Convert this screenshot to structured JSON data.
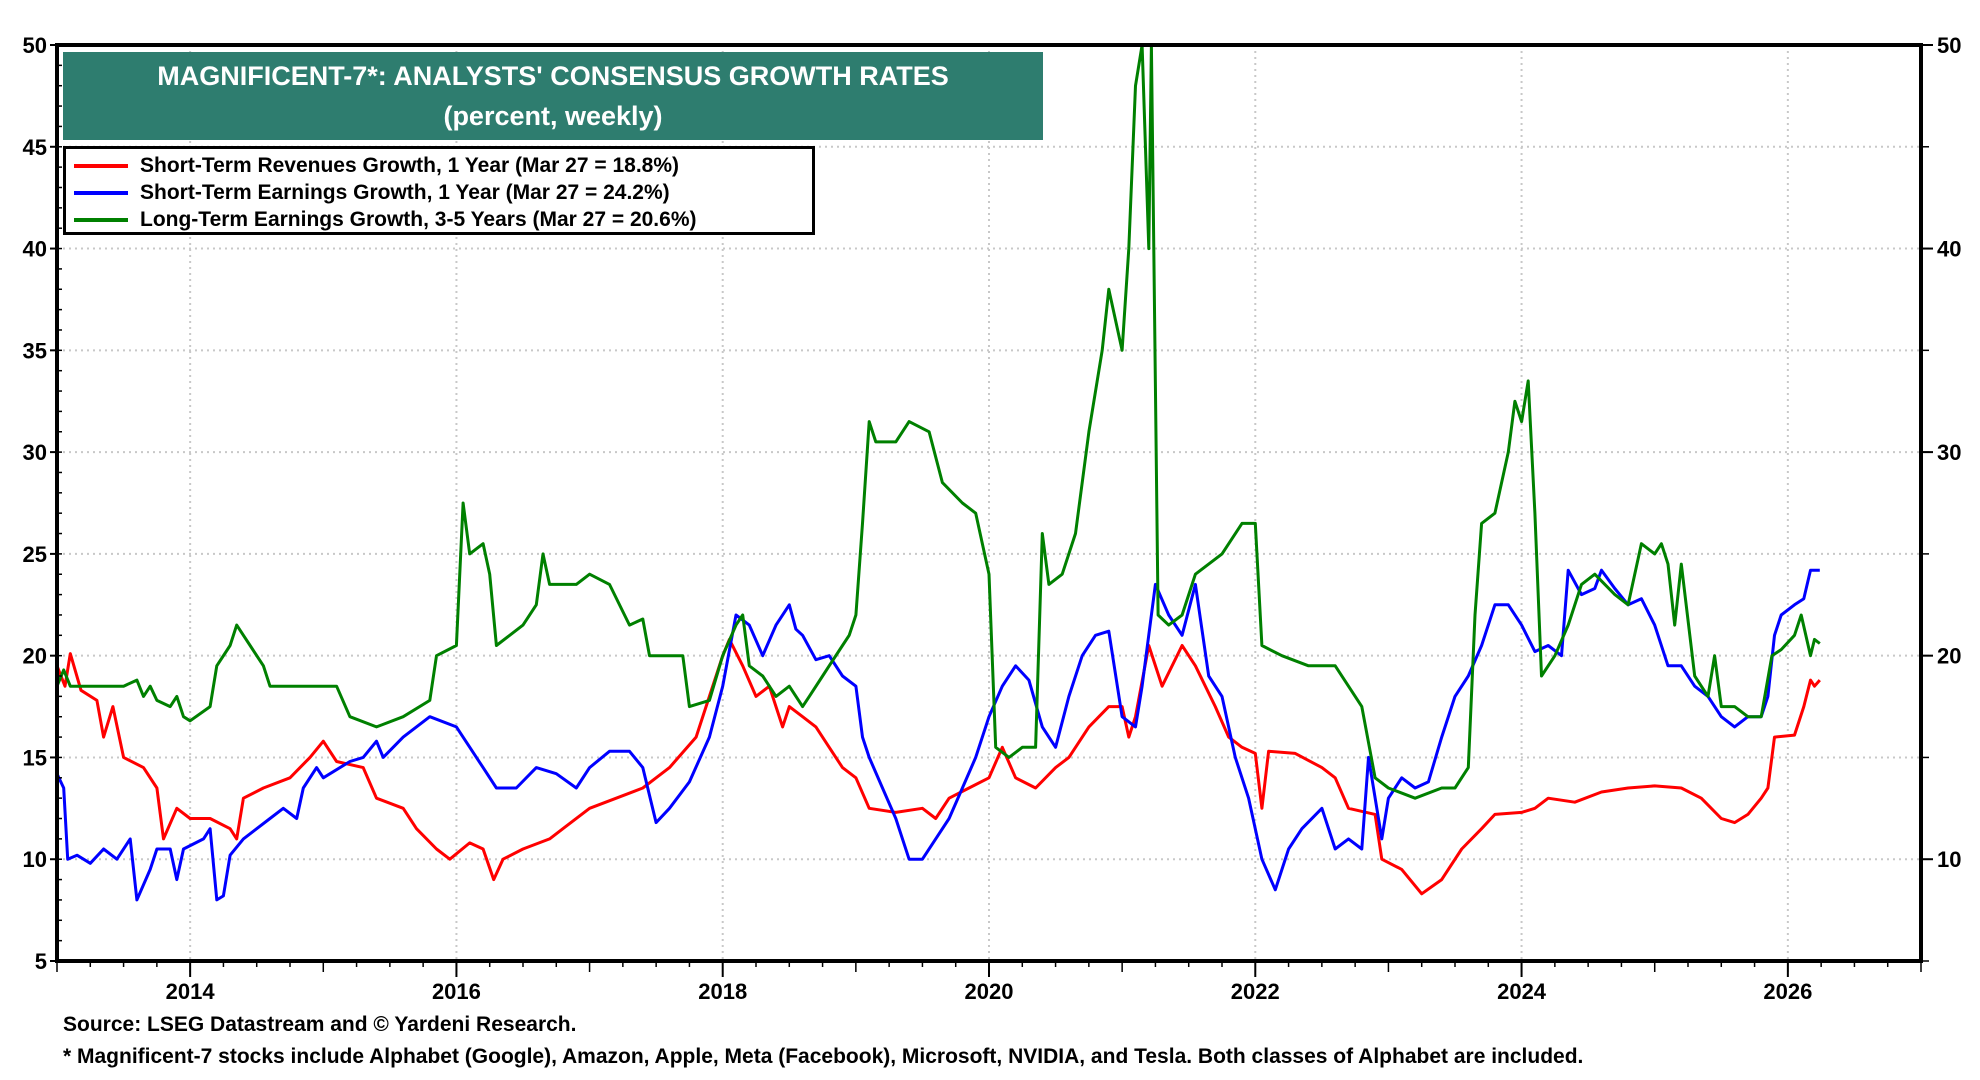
{
  "chart_data": {
    "type": "line",
    "title": "MAGNIFICENT-7*: ANALYSTS' CONSENSUS GROWTH RATES",
    "subtitle": "(percent, weekly)",
    "xlim": [
      2013.0,
      2027.0
    ],
    "ylim": [
      5,
      50
    ],
    "y2lim": [
      5,
      50
    ],
    "x_tick_labels": [
      "2014",
      "2016",
      "2018",
      "2020",
      "2022",
      "2024",
      "2026"
    ],
    "y_tick_labels": [
      "5",
      "10",
      "15",
      "20",
      "25",
      "30",
      "35",
      "40",
      "45",
      "50"
    ],
    "y2_tick_labels": [
      "10",
      "20",
      "30",
      "40",
      "50"
    ],
    "grid": true,
    "legend_position": "top-left",
    "colors": {
      "title_bg": "#2e7d6f",
      "revenues": "#ff0000",
      "earnings_st": "#0000ff",
      "earnings_lt": "#008000"
    },
    "series": [
      {
        "name": "Short-Term Revenues Growth, 1 Year (Mar 27 = 18.8%)",
        "color": "#ff0000",
        "x": [
          2013.0,
          2013.06,
          2013.1,
          2013.18,
          2013.3,
          2013.35,
          2013.42,
          2013.5,
          2013.65,
          2013.75,
          2013.8,
          2013.9,
          2014.0,
          2014.15,
          2014.3,
          2014.35,
          2014.4,
          2014.55,
          2014.75,
          2014.9,
          2015.0,
          2015.1,
          2015.3,
          2015.4,
          2015.6,
          2015.7,
          2015.85,
          2015.95,
          2016.1,
          2016.2,
          2016.28,
          2016.35,
          2016.5,
          2016.7,
          2016.8,
          2017.0,
          2017.2,
          2017.4,
          2017.5,
          2017.6,
          2017.8,
          2017.9,
          2018.0,
          2018.05,
          2018.15,
          2018.25,
          2018.35,
          2018.45,
          2018.5,
          2018.6,
          2018.7,
          2018.8,
          2018.9,
          2019.0,
          2019.1,
          2019.3,
          2019.5,
          2019.6,
          2019.7,
          2019.85,
          2020.0,
          2020.1,
          2020.2,
          2020.35,
          2020.5,
          2020.6,
          2020.75,
          2020.9,
          2021.0,
          2021.05,
          2021.1,
          2021.2,
          2021.3,
          2021.45,
          2021.55,
          2021.7,
          2021.8,
          2021.9,
          2022.0,
          2022.05,
          2022.1,
          2022.3,
          2022.5,
          2022.6,
          2022.7,
          2022.9,
          2022.95,
          2023.1,
          2023.25,
          2023.4,
          2023.55,
          2023.7,
          2023.8,
          2024.0,
          2024.1,
          2024.2,
          2024.4,
          2024.6,
          2024.8,
          2025.0,
          2025.2,
          2025.35,
          2025.5,
          2025.6,
          2025.7,
          2025.8,
          2025.85,
          2025.9,
          2026.05,
          2026.12,
          2026.17,
          2026.2,
          2026.24
        ],
        "y": [
          19.5,
          18.5,
          20.1,
          18.3,
          17.8,
          16,
          17.5,
          15,
          14.5,
          13.5,
          11,
          12.5,
          12,
          12,
          11.5,
          11,
          13,
          13.5,
          14,
          15,
          15.8,
          14.8,
          14.5,
          13,
          12.5,
          11.5,
          10.5,
          10,
          10.8,
          10.5,
          9,
          10,
          10.5,
          11,
          11.5,
          12.5,
          13,
          13.5,
          14,
          14.5,
          16,
          18,
          20,
          20.8,
          19.5,
          18,
          18.5,
          16.5,
          17.5,
          17,
          16.5,
          15.5,
          14.5,
          14,
          12.5,
          12.3,
          12.5,
          12,
          13,
          13.5,
          14,
          15.5,
          14,
          13.5,
          14.5,
          15,
          16.5,
          17.5,
          17.5,
          16,
          17,
          20.5,
          18.5,
          20.5,
          19.5,
          17.5,
          16,
          15.5,
          15.2,
          12.5,
          15.3,
          15.2,
          14.5,
          14,
          12.5,
          12.2,
          10,
          9.5,
          8.3,
          9,
          10.5,
          11.5,
          12.2,
          12.3,
          12.5,
          13,
          12.8,
          13.3,
          13.5,
          13.6,
          13.5,
          13,
          12,
          11.8,
          12.2,
          13,
          13.5,
          16,
          16.1,
          17.5,
          18.8,
          18.5,
          18.8
        ]
      },
      {
        "name": "Short-Term Earnings Growth, 1 Year (Mar 27 = 24.2%)",
        "color": "#0000ff",
        "x": [
          2013.0,
          2013.05,
          2013.08,
          2013.15,
          2013.25,
          2013.35,
          2013.45,
          2013.55,
          2013.6,
          2013.7,
          2013.75,
          2013.85,
          2013.9,
          2013.95,
          2014.1,
          2014.15,
          2014.2,
          2014.25,
          2014.3,
          2014.4,
          2014.5,
          2014.6,
          2014.7,
          2014.8,
          2014.85,
          2014.95,
          2015.0,
          2015.2,
          2015.3,
          2015.4,
          2015.45,
          2015.6,
          2015.8,
          2016.0,
          2016.2,
          2016.3,
          2016.45,
          2016.6,
          2016.75,
          2016.9,
          2017.0,
          2017.15,
          2017.3,
          2017.4,
          2017.5,
          2017.6,
          2017.75,
          2017.9,
          2018.0,
          2018.1,
          2018.2,
          2018.3,
          2018.4,
          2018.5,
          2018.55,
          2018.6,
          2018.7,
          2018.8,
          2018.9,
          2019.0,
          2019.05,
          2019.1,
          2019.2,
          2019.3,
          2019.4,
          2019.5,
          2019.6,
          2019.7,
          2019.8,
          2019.9,
          2020.0,
          2020.1,
          2020.2,
          2020.3,
          2020.4,
          2020.5,
          2020.6,
          2020.7,
          2020.8,
          2020.9,
          2021.0,
          2021.1,
          2021.15,
          2021.25,
          2021.35,
          2021.45,
          2021.55,
          2021.65,
          2021.75,
          2021.85,
          2021.95,
          2022.05,
          2022.15,
          2022.25,
          2022.35,
          2022.5,
          2022.6,
          2022.7,
          2022.8,
          2022.85,
          2022.95,
          2023.0,
          2023.1,
          2023.2,
          2023.3,
          2023.4,
          2023.5,
          2023.6,
          2023.7,
          2023.8,
          2023.9,
          2024.0,
          2024.1,
          2024.2,
          2024.3,
          2024.35,
          2024.45,
          2024.55,
          2024.6,
          2024.7,
          2024.8,
          2024.9,
          2025.0,
          2025.1,
          2025.2,
          2025.3,
          2025.4,
          2025.5,
          2025.6,
          2025.7,
          2025.8,
          2025.85,
          2025.9,
          2025.95,
          2026.05,
          2026.12,
          2026.17,
          2026.24
        ],
        "y": [
          14.2,
          13.5,
          10,
          10.2,
          9.8,
          10.5,
          10,
          11,
          8,
          9.5,
          10.5,
          10.5,
          9,
          10.5,
          11,
          11.5,
          8,
          8.2,
          10.2,
          11,
          11.5,
          12,
          12.5,
          12,
          13.5,
          14.5,
          14,
          14.8,
          15,
          15.8,
          15,
          16,
          17,
          16.5,
          14.5,
          13.5,
          13.5,
          14.5,
          14.2,
          13.5,
          14.5,
          15.3,
          15.3,
          14.5,
          11.8,
          12.5,
          13.8,
          16,
          18.5,
          22,
          21.5,
          20,
          21.5,
          22.5,
          21.3,
          21,
          19.8,
          20,
          19,
          18.5,
          16,
          15,
          13.5,
          12,
          10,
          10,
          11,
          12,
          13.5,
          15,
          17,
          18.5,
          19.5,
          18.8,
          16.5,
          15.5,
          18,
          20,
          21,
          21.2,
          17,
          16.5,
          18.5,
          23.5,
          22,
          21,
          23.5,
          19,
          18,
          15,
          13,
          10,
          8.5,
          10.5,
          11.5,
          12.5,
          10.5,
          11,
          10.5,
          15,
          11,
          13,
          14,
          13.5,
          13.8,
          16,
          18,
          19,
          20.5,
          22.5,
          22.5,
          21.5,
          20.2,
          20.5,
          20,
          24.2,
          23,
          23.3,
          24.2,
          23.3,
          22.5,
          22.8,
          21.5,
          19.5,
          19.5,
          18.5,
          18,
          17,
          16.5,
          17,
          17,
          18,
          21,
          22,
          22.5,
          22.8,
          24.2,
          24.2
        ]
      },
      {
        "name": "Long-Term Earnings Growth, 3-5 Years (Mar 27 = 20.6%)",
        "color": "#008000",
        "x": [
          2013.0,
          2013.05,
          2013.1,
          2013.3,
          2013.5,
          2013.6,
          2013.65,
          2013.7,
          2013.75,
          2013.85,
          2013.9,
          2013.95,
          2014.0,
          2014.15,
          2014.2,
          2014.3,
          2014.35,
          2014.45,
          2014.55,
          2014.6,
          2014.8,
          2014.95,
          2015.1,
          2015.2,
          2015.4,
          2015.6,
          2015.8,
          2015.85,
          2016.0,
          2016.05,
          2016.1,
          2016.2,
          2016.25,
          2016.3,
          2016.5,
          2016.6,
          2016.65,
          2016.7,
          2016.9,
          2017.0,
          2017.15,
          2017.3,
          2017.4,
          2017.45,
          2017.7,
          2017.75,
          2017.9,
          2018.0,
          2018.1,
          2018.15,
          2018.2,
          2018.3,
          2018.4,
          2018.5,
          2018.6,
          2018.65,
          2018.75,
          2018.8,
          2018.9,
          2018.95,
          2019.0,
          2019.05,
          2019.1,
          2019.15,
          2019.3,
          2019.4,
          2019.55,
          2019.65,
          2019.8,
          2019.9,
          2020.0,
          2020.05,
          2020.15,
          2020.25,
          2020.35,
          2020.4,
          2020.45,
          2020.55,
          2020.65,
          2020.75,
          2020.85,
          2020.9,
          2021.0,
          2021.05,
          2021.1,
          2021.15,
          2021.2,
          2021.22,
          2021.27,
          2021.35,
          2021.45,
          2021.55,
          2021.75,
          2021.9,
          2022.0,
          2022.05,
          2022.2,
          2022.4,
          2022.6,
          2022.7,
          2022.8,
          2022.9,
          2023.0,
          2023.2,
          2023.4,
          2023.5,
          2023.6,
          2023.65,
          2023.7,
          2023.8,
          2023.9,
          2023.95,
          2024.0,
          2024.05,
          2024.1,
          2024.15,
          2024.25,
          2024.35,
          2024.45,
          2024.55,
          2024.7,
          2024.8,
          2024.9,
          2025.0,
          2025.05,
          2025.1,
          2025.15,
          2025.2,
          2025.3,
          2025.4,
          2025.45,
          2025.5,
          2025.6,
          2025.7,
          2025.8,
          2025.88,
          2025.95,
          2026.05,
          2026.1,
          2026.17,
          2026.2,
          2026.24
        ],
        "y": [
          18.5,
          19.3,
          18.5,
          18.5,
          18.5,
          18.8,
          18,
          18.5,
          17.8,
          17.5,
          18,
          17,
          16.8,
          17.5,
          19.5,
          20.5,
          21.5,
          20.5,
          19.5,
          18.5,
          18.5,
          18.5,
          18.5,
          17,
          16.5,
          17,
          17.8,
          20,
          20.5,
          27.5,
          25,
          25.5,
          24,
          20.5,
          21.5,
          22.5,
          25,
          23.5,
          23.5,
          24,
          23.5,
          21.5,
          21.8,
          20,
          20,
          17.5,
          17.8,
          20,
          21.5,
          22,
          19.5,
          19,
          18,
          18.5,
          17.5,
          18,
          19,
          19.5,
          20.5,
          21,
          22,
          26.5,
          31.5,
          30.5,
          30.5,
          31.5,
          31,
          28.5,
          27.5,
          27,
          24,
          15.5,
          15,
          15.5,
          15.5,
          26,
          23.5,
          24,
          26,
          31,
          35,
          38,
          35,
          40,
          48,
          50,
          40,
          50,
          22,
          21.5,
          22,
          24,
          25,
          26.5,
          26.5,
          20.5,
          20,
          19.5,
          19.5,
          18.5,
          17.5,
          14,
          13.5,
          13,
          13.5,
          13.5,
          14.5,
          22,
          26.5,
          27,
          30,
          32.5,
          31.5,
          33.5,
          27,
          19,
          20,
          21.5,
          23.5,
          24,
          23,
          22.5,
          25.5,
          25,
          25.5,
          24.5,
          21.5,
          24.5,
          19,
          18,
          20,
          17.5,
          17.5,
          17,
          17,
          20,
          20.3,
          21,
          22,
          20,
          20.8,
          20.6
        ]
      }
    ]
  },
  "footer": {
    "source": "Source: LSEG Datastream and © Yardeni Research.",
    "note": "* Magnificent-7 stocks include Alphabet (Google), Amazon, Apple, Meta (Facebook), Microsoft, NVIDIA, and Tesla. Both classes of Alphabet are included."
  }
}
